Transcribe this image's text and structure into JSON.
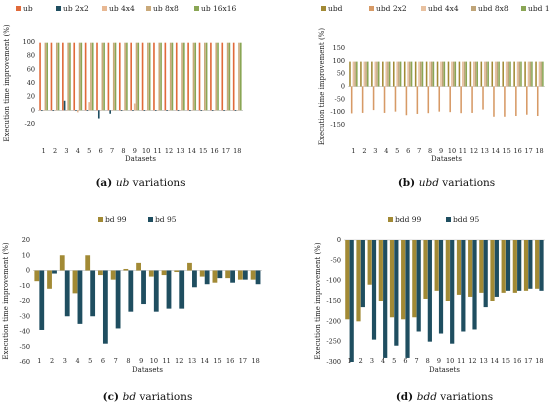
{
  "chart_data": [
    {
      "type": "bar",
      "xlabel": "Datasets",
      "ylabel": "Execution time improvement (%)",
      "ylim": [
        -20,
        100
      ],
      "yticks": [
        -20,
        0,
        20,
        40,
        60,
        80,
        100
      ],
      "categories": [
        "1",
        "2",
        "3",
        "4",
        "5",
        "6",
        "7",
        "8",
        "9",
        "10",
        "11",
        "12",
        "13",
        "14",
        "15",
        "16",
        "17",
        "18"
      ],
      "legend_position": "top",
      "caption": {
        "tag": "(a)",
        "name": "ub",
        "suffix": "variations"
      },
      "series": [
        {
          "name": "ub",
          "color": "#e06a3a",
          "values": [
            99,
            99,
            99,
            99,
            99,
            99,
            99,
            99,
            99,
            99,
            99,
            99,
            99,
            99,
            99,
            99,
            99,
            99
          ]
        },
        {
          "name": "ub 2x2",
          "color": "#1f4e60",
          "values": [
            -1,
            -1,
            14,
            -1,
            -1,
            -12,
            -5,
            -1,
            -1,
            -1,
            -1,
            -1,
            -1,
            -1,
            -1,
            -1,
            -1,
            -1
          ]
        },
        {
          "name": "ub 4x4",
          "color": "#e8b893",
          "values": [
            0,
            0,
            0,
            -3,
            12,
            0,
            0,
            0,
            10,
            0,
            0,
            0,
            0,
            0,
            0,
            0,
            0,
            0
          ]
        },
        {
          "name": "ub 8x8",
          "color": "#c9a97a",
          "values": [
            99,
            99,
            99,
            99,
            99,
            99,
            99,
            99,
            99,
            99,
            99,
            99,
            99,
            99,
            99,
            99,
            99,
            99
          ]
        },
        {
          "name": "ub 16x16",
          "color": "#8aa655",
          "values": [
            99,
            99,
            99,
            99,
            99,
            99,
            99,
            99,
            99,
            99,
            99,
            99,
            99,
            99,
            99,
            99,
            99,
            99
          ]
        }
      ]
    },
    {
      "type": "bar",
      "xlabel": "Datasets",
      "ylabel": "Execution time improvement (%)",
      "ylim": [
        -150,
        150
      ],
      "yticks": [
        -150,
        -100,
        -50,
        0,
        50,
        100,
        150
      ],
      "categories": [
        "1",
        "2",
        "3",
        "4",
        "5",
        "6",
        "7",
        "8",
        "9",
        "10",
        "11",
        "12",
        "13",
        "14",
        "15",
        "16",
        "17",
        "18"
      ],
      "legend_position": "top",
      "caption": {
        "tag": "(b)",
        "name": "ubd",
        "suffix": "variations"
      },
      "series": [
        {
          "name": "ubd",
          "color": "#a28a35",
          "values": [
            97,
            97,
            97,
            97,
            97,
            97,
            97,
            97,
            97,
            97,
            97,
            97,
            97,
            97,
            97,
            97,
            97,
            97
          ]
        },
        {
          "name": "ubd 2x2",
          "color": "#d79a66",
          "values": [
            -105,
            -103,
            -92,
            -103,
            -98,
            -112,
            -107,
            -104,
            -98,
            -100,
            -104,
            -103,
            -90,
            -118,
            -118,
            -115,
            -110,
            -115
          ]
        },
        {
          "name": "ubd 4x4",
          "color": "#e8c1a0",
          "values": [
            97,
            97,
            97,
            97,
            97,
            97,
            97,
            97,
            97,
            97,
            97,
            97,
            97,
            97,
            97,
            97,
            97,
            97
          ]
        },
        {
          "name": "ubd 8x8",
          "color": "#bfa478",
          "values": [
            97,
            97,
            97,
            97,
            97,
            97,
            97,
            97,
            97,
            97,
            97,
            97,
            97,
            97,
            97,
            97,
            97,
            97
          ]
        },
        {
          "name": "ubd 16x16",
          "color": "#8aa655",
          "values": [
            97,
            97,
            97,
            97,
            97,
            97,
            97,
            97,
            97,
            97,
            97,
            97,
            97,
            97,
            97,
            97,
            97,
            97
          ]
        }
      ]
    },
    {
      "type": "bar",
      "xlabel": "Datasets",
      "ylabel": "Execution time improvement (%)",
      "ylim": [
        -60,
        20
      ],
      "yticks": [
        -60,
        -50,
        -40,
        -30,
        -20,
        -10,
        0,
        10,
        20
      ],
      "categories": [
        "1",
        "2",
        "3",
        "4",
        "5",
        "6",
        "7",
        "8",
        "9",
        "10",
        "11",
        "12",
        "13",
        "14",
        "15",
        "16",
        "17",
        "18"
      ],
      "legend_position": "top",
      "caption": {
        "tag": "(c)",
        "name": "bd",
        "suffix": "variations"
      },
      "series": [
        {
          "name": "bd 99",
          "color": "#a28a35",
          "values": [
            -7,
            -12,
            10,
            -15,
            10,
            -3,
            -6,
            1,
            5,
            -4,
            -3,
            -1,
            5,
            -4,
            -8,
            -5,
            -6,
            -6
          ]
        },
        {
          "name": "bd 95",
          "color": "#1f4e60",
          "values": [
            -39,
            -2,
            -30,
            -35,
            -30,
            -48,
            -38,
            -27,
            -22,
            -27,
            -25,
            -25,
            -11,
            -9,
            -5,
            -8,
            -6,
            -9
          ]
        }
      ]
    },
    {
      "type": "bar",
      "xlabel": "Datasets",
      "ylabel": "Execution time improvement (%)",
      "ylim": [
        -300,
        0
      ],
      "yticks": [
        -300,
        -250,
        -200,
        -150,
        -100,
        -50,
        0
      ],
      "categories": [
        "1",
        "2",
        "3",
        "4",
        "5",
        "6",
        "7",
        "8",
        "9",
        "10",
        "11",
        "12",
        "13",
        "14",
        "15",
        "16",
        "17",
        "18"
      ],
      "legend_position": "top",
      "caption": {
        "tag": "(d)",
        "name": "bdd",
        "suffix": "variations"
      },
      "series": [
        {
          "name": "bdd 99",
          "color": "#a28a35",
          "values": [
            -195,
            -200,
            -110,
            -150,
            -190,
            -195,
            -190,
            -145,
            -125,
            -150,
            -135,
            -140,
            -130,
            -150,
            -130,
            -130,
            -125,
            -120
          ]
        },
        {
          "name": "bdd 95",
          "color": "#1f4e60",
          "values": [
            -300,
            -165,
            -245,
            -290,
            -260,
            -290,
            -225,
            -250,
            -230,
            -255,
            -225,
            -220,
            -165,
            -140,
            -125,
            -125,
            -120,
            -125
          ]
        }
      ]
    }
  ]
}
